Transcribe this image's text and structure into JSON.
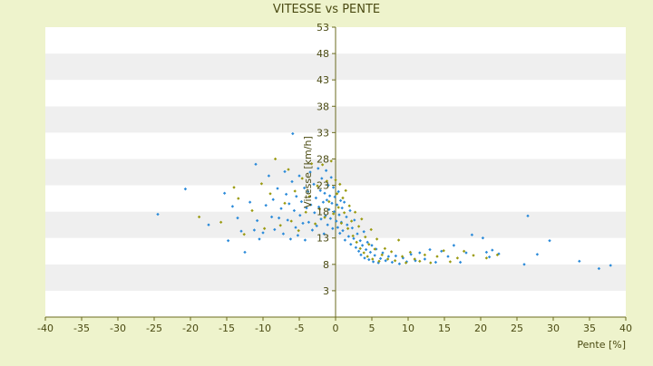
{
  "chart_data": {
    "type": "scatter",
    "title": "VITESSE vs PENTE",
    "xlabel": "Pente [%]",
    "ylabel": "Vitesse [km/h]",
    "xlim": [
      -40,
      40
    ],
    "ylim": [
      -2,
      53
    ],
    "x_ticks": [
      -40,
      -35,
      -30,
      -25,
      -20,
      -15,
      -10,
      -5,
      0,
      5,
      10,
      15,
      20,
      25,
      30,
      35,
      40
    ],
    "y_ticks": [
      3,
      8,
      13,
      18,
      23,
      28,
      33,
      38,
      43,
      48,
      53
    ],
    "grid": true,
    "legend": "none",
    "colors": {
      "background": "#eef3cc",
      "plot_white": "#ffffff",
      "plot_band": "#efefef",
      "axis": "#6b6b1f",
      "text": "#4a4a12",
      "series_blue": "#2a8ad9",
      "series_olive": "#9a9a10"
    },
    "series": [
      {
        "color_key": "series_blue",
        "points": [
          [
            -24.5,
            17.5
          ],
          [
            -20.7,
            22.3
          ],
          [
            -17.5,
            15.5
          ],
          [
            -15.3,
            21.5
          ],
          [
            -14.8,
            12.5
          ],
          [
            -14.2,
            19.0
          ],
          [
            -13.5,
            16.8
          ],
          [
            -13.0,
            14.3
          ],
          [
            -12.5,
            10.3
          ],
          [
            -11.8,
            19.8
          ],
          [
            -11.2,
            14.5
          ],
          [
            -11.0,
            27.0
          ],
          [
            -10.8,
            16.3
          ],
          [
            -10.5,
            12.8
          ],
          [
            -10.0,
            14.0
          ],
          [
            -9.6,
            19.2
          ],
          [
            -9.2,
            24.8
          ],
          [
            -8.8,
            17.0
          ],
          [
            -8.6,
            20.3
          ],
          [
            -8.4,
            14.6
          ],
          [
            -8.0,
            22.4
          ],
          [
            -7.8,
            16.8
          ],
          [
            -7.5,
            18.6
          ],
          [
            -7.2,
            13.8
          ],
          [
            -7.0,
            25.6
          ],
          [
            -6.8,
            21.3
          ],
          [
            -6.6,
            16.4
          ],
          [
            -6.4,
            19.5
          ],
          [
            -6.2,
            12.8
          ],
          [
            -6.0,
            23.7
          ],
          [
            -5.9,
            32.8
          ],
          [
            -5.7,
            18.2
          ],
          [
            -5.5,
            15.0
          ],
          [
            -5.4,
            20.9
          ],
          [
            -5.2,
            13.5
          ],
          [
            -5.0,
            24.8
          ],
          [
            -4.9,
            17.3
          ],
          [
            -4.7,
            19.9
          ],
          [
            -4.5,
            15.8
          ],
          [
            -4.3,
            22.5
          ],
          [
            -4.2,
            12.6
          ],
          [
            -4.0,
            18.7
          ],
          [
            -3.8,
            21.8
          ],
          [
            -3.7,
            16.0
          ],
          [
            -3.5,
            25.5
          ],
          [
            -3.4,
            19.3
          ],
          [
            -3.2,
            14.5
          ],
          [
            -3.0,
            23.2
          ],
          [
            -2.9,
            17.8
          ],
          [
            -2.7,
            20.6
          ],
          [
            -2.6,
            15.3
          ],
          [
            -2.4,
            26.2
          ],
          [
            -2.3,
            18.9
          ],
          [
            -2.1,
            22.0
          ],
          [
            -2.0,
            16.6
          ],
          [
            -1.9,
            24.3
          ],
          [
            -1.7,
            19.8
          ],
          [
            -1.6,
            13.8
          ],
          [
            -1.5,
            21.5
          ],
          [
            -1.4,
            17.2
          ],
          [
            -1.3,
            25.8
          ],
          [
            -1.2,
            20.2
          ],
          [
            -1.1,
            15.5
          ],
          [
            -1.0,
            23.0
          ],
          [
            -0.9,
            18.4
          ],
          [
            -0.8,
            21.0
          ],
          [
            -0.7,
            16.7
          ],
          [
            -0.6,
            24.5
          ],
          [
            -0.5,
            19.6
          ],
          [
            -0.4,
            14.8
          ],
          [
            -0.3,
            22.6
          ],
          [
            -0.2,
            18.0
          ],
          [
            -0.1,
            20.8
          ],
          [
            0.1,
            16.2
          ],
          [
            0.2,
            19.3
          ],
          [
            0.3,
            15.0
          ],
          [
            0.4,
            21.8
          ],
          [
            0.5,
            17.4
          ],
          [
            0.6,
            13.9
          ],
          [
            0.7,
            20.1
          ],
          [
            0.8,
            16.0
          ],
          [
            0.9,
            18.7
          ],
          [
            1.0,
            14.4
          ],
          [
            1.2,
            19.8
          ],
          [
            1.3,
            12.6
          ],
          [
            1.5,
            17.0
          ],
          [
            1.6,
            15.5
          ],
          [
            1.8,
            13.3
          ],
          [
            2.0,
            18.2
          ],
          [
            2.1,
            11.8
          ],
          [
            2.3,
            14.9
          ],
          [
            2.5,
            12.9
          ],
          [
            2.6,
            16.4
          ],
          [
            2.8,
            11.2
          ],
          [
            3.0,
            13.8
          ],
          [
            3.2,
            10.5
          ],
          [
            3.4,
            12.5
          ],
          [
            3.5,
            9.8
          ],
          [
            3.7,
            11.6
          ],
          [
            3.9,
            14.2
          ],
          [
            4.0,
            9.2
          ],
          [
            4.2,
            10.8
          ],
          [
            4.4,
            12.2
          ],
          [
            4.6,
            8.9
          ],
          [
            4.8,
            10.3
          ],
          [
            5.0,
            11.6
          ],
          [
            5.2,
            8.5
          ],
          [
            5.4,
            9.7
          ],
          [
            5.6,
            10.9
          ],
          [
            5.9,
            8.3
          ],
          [
            6.2,
            9.1
          ],
          [
            6.5,
            10.2
          ],
          [
            6.9,
            8.7
          ],
          [
            7.3,
            9.5
          ],
          [
            7.8,
            8.4
          ],
          [
            8.3,
            9.6
          ],
          [
            8.8,
            8.1
          ],
          [
            9.3,
            9.2
          ],
          [
            9.8,
            8.5
          ],
          [
            10.4,
            9.9
          ],
          [
            11.0,
            8.7
          ],
          [
            11.6,
            10.2
          ],
          [
            12.3,
            9.0
          ],
          [
            13.0,
            10.8
          ],
          [
            13.8,
            8.4
          ],
          [
            14.6,
            10.5
          ],
          [
            15.5,
            9.5
          ],
          [
            16.3,
            11.6
          ],
          [
            17.2,
            8.4
          ],
          [
            18.0,
            10.2
          ],
          [
            18.8,
            13.6
          ],
          [
            20.3,
            13.0
          ],
          [
            20.8,
            10.3
          ],
          [
            21.2,
            9.4
          ],
          [
            21.6,
            10.7
          ],
          [
            22.5,
            10.0
          ],
          [
            26.0,
            8.0
          ],
          [
            26.5,
            17.2
          ],
          [
            27.8,
            9.9
          ],
          [
            29.5,
            12.5
          ],
          [
            33.6,
            8.6
          ],
          [
            36.3,
            7.2
          ],
          [
            37.9,
            7.8
          ]
        ]
      },
      {
        "color_key": "series_olive",
        "points": [
          [
            -18.8,
            17.0
          ],
          [
            -15.8,
            16.0
          ],
          [
            -14.0,
            22.6
          ],
          [
            -13.4,
            20.5
          ],
          [
            -12.6,
            13.7
          ],
          [
            -11.5,
            18.2
          ],
          [
            -10.2,
            23.3
          ],
          [
            -9.8,
            14.8
          ],
          [
            -9.0,
            21.4
          ],
          [
            -8.3,
            28.0
          ],
          [
            -7.6,
            15.4
          ],
          [
            -7.0,
            19.6
          ],
          [
            -6.5,
            26.0
          ],
          [
            -6.1,
            16.2
          ],
          [
            -5.6,
            21.9
          ],
          [
            -5.1,
            14.4
          ],
          [
            -4.6,
            24.3
          ],
          [
            -4.1,
            17.9
          ],
          [
            -3.6,
            20.9
          ],
          [
            -3.3,
            27.1
          ],
          [
            -2.8,
            15.7
          ],
          [
            -2.5,
            22.9
          ],
          [
            -2.2,
            18.5
          ],
          [
            -1.8,
            26.9
          ],
          [
            -1.5,
            16.9
          ],
          [
            -1.2,
            23.8
          ],
          [
            -0.9,
            19.9
          ],
          [
            -0.6,
            27.6
          ],
          [
            -0.3,
            17.6
          ],
          [
            0.0,
            24.0
          ],
          [
            0.2,
            21.4
          ],
          [
            0.4,
            18.8
          ],
          [
            0.6,
            23.2
          ],
          [
            0.8,
            15.8
          ],
          [
            1.0,
            20.6
          ],
          [
            1.2,
            17.8
          ],
          [
            1.4,
            22.0
          ],
          [
            1.7,
            14.8
          ],
          [
            1.9,
            19.1
          ],
          [
            2.2,
            16.2
          ],
          [
            2.4,
            13.4
          ],
          [
            2.7,
            17.9
          ],
          [
            2.9,
            12.2
          ],
          [
            3.2,
            15.2
          ],
          [
            3.4,
            11.0
          ],
          [
            3.6,
            16.6
          ],
          [
            3.9,
            10.2
          ],
          [
            4.1,
            13.2
          ],
          [
            4.4,
            9.5
          ],
          [
            4.6,
            11.8
          ],
          [
            4.9,
            14.6
          ],
          [
            5.1,
            9.0
          ],
          [
            5.4,
            10.9
          ],
          [
            5.7,
            12.8
          ],
          [
            6.0,
            8.6
          ],
          [
            6.4,
            9.8
          ],
          [
            6.8,
            11.0
          ],
          [
            7.2,
            9.0
          ],
          [
            7.7,
            10.4
          ],
          [
            8.2,
            8.7
          ],
          [
            8.7,
            12.6
          ],
          [
            9.2,
            9.5
          ],
          [
            9.7,
            8.3
          ],
          [
            10.3,
            10.3
          ],
          [
            10.9,
            9.0
          ],
          [
            11.6,
            8.6
          ],
          [
            12.3,
            9.8
          ],
          [
            13.1,
            8.3
          ],
          [
            14.0,
            9.5
          ],
          [
            14.9,
            10.6
          ],
          [
            15.8,
            8.5
          ],
          [
            16.8,
            9.2
          ],
          [
            17.7,
            10.5
          ],
          [
            19.0,
            9.7
          ],
          [
            20.8,
            9.2
          ],
          [
            22.3,
            9.8
          ]
        ]
      }
    ]
  }
}
